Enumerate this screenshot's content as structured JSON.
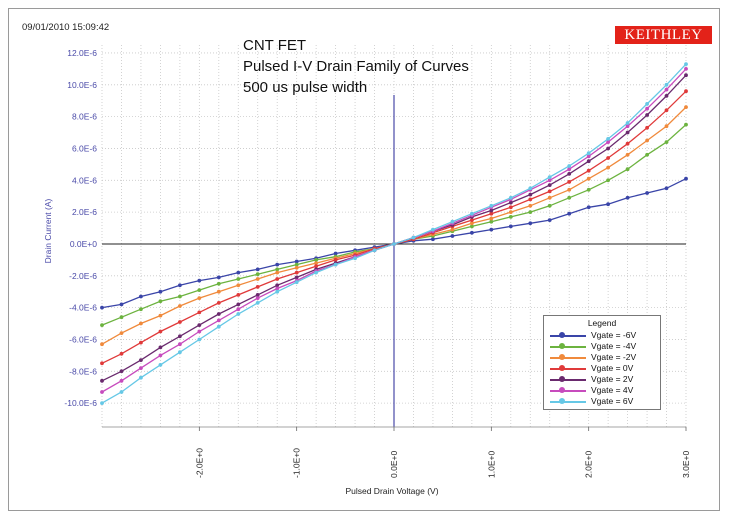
{
  "timestamp": "09/01/2010 15:09:42",
  "brand": "KEITHLEY",
  "title_lines": [
    "CNT FET",
    "Pulsed I-V Drain Family of Curves",
    "500 us pulse width"
  ],
  "chart_data": {
    "type": "line",
    "xlabel": "Pulsed Drain Voltage (V)",
    "ylabel": "Drain Current (A)",
    "xlim": [
      -3.0,
      3.0
    ],
    "ylim": [
      -11.5,
      12.5
    ],
    "x_ticks": [
      -2.0,
      -1.0,
      0.0,
      1.0,
      2.0,
      3.0
    ],
    "x_tick_labels": [
      "-2.0E+0",
      "-1.0E+0",
      "0.0E+0",
      "1.0E+0",
      "2.0E+0",
      "3.0E+0"
    ],
    "y_ticks": [
      12,
      10,
      8,
      6,
      4,
      2,
      0,
      -2,
      -4,
      -6,
      -8,
      -10
    ],
    "y_tick_labels": [
      "12.0E-6",
      "10.0E-6",
      "8.0E-6",
      "6.0E-6",
      "4.0E-6",
      "2.0E-6",
      "0.0E+0",
      "-2.0E-6",
      "-4.0E-6",
      "-6.0E-6",
      "-8.0E-6",
      "-10.0E-6"
    ],
    "y_unit_scale": "1E-6 A",
    "grid": true,
    "legend_title": "Legend",
    "legend_position": "bottom-right",
    "x": [
      -3.0,
      -2.8,
      -2.6,
      -2.4,
      -2.2,
      -2.0,
      -1.8,
      -1.6,
      -1.4,
      -1.2,
      -1.0,
      -0.8,
      -0.6,
      -0.4,
      -0.2,
      0.0,
      0.2,
      0.4,
      0.6,
      0.8,
      1.0,
      1.2,
      1.4,
      1.6,
      1.8,
      2.0,
      2.2,
      2.4,
      2.6,
      2.8,
      3.0
    ],
    "series": [
      {
        "name": "Vgate = -6V",
        "color": "#3a45a8",
        "values": [
          -4.0,
          -3.8,
          -3.3,
          -3.0,
          -2.6,
          -2.3,
          -2.1,
          -1.8,
          -1.6,
          -1.3,
          -1.1,
          -0.9,
          -0.6,
          -0.4,
          -0.2,
          0.0,
          0.2,
          0.3,
          0.5,
          0.7,
          0.9,
          1.1,
          1.3,
          1.5,
          1.9,
          2.3,
          2.5,
          2.9,
          3.2,
          3.5,
          4.1
        ]
      },
      {
        "name": "Vgate = -4V",
        "color": "#6cb33f",
        "values": [
          -5.1,
          -4.6,
          -4.1,
          -3.6,
          -3.3,
          -2.9,
          -2.5,
          -2.2,
          -1.9,
          -1.6,
          -1.3,
          -1.0,
          -0.8,
          -0.5,
          -0.3,
          0.0,
          0.3,
          0.5,
          0.8,
          1.1,
          1.4,
          1.7,
          2.0,
          2.4,
          2.9,
          3.4,
          4.0,
          4.7,
          5.6,
          6.4,
          7.5
        ]
      },
      {
        "name": "Vgate = -2V",
        "color": "#f08a3c",
        "values": [
          -6.3,
          -5.6,
          -5.0,
          -4.5,
          -3.9,
          -3.4,
          -3.0,
          -2.6,
          -2.2,
          -1.8,
          -1.5,
          -1.2,
          -0.9,
          -0.6,
          -0.3,
          0.0,
          0.3,
          0.6,
          0.9,
          1.3,
          1.6,
          2.0,
          2.4,
          2.9,
          3.4,
          4.1,
          4.8,
          5.6,
          6.5,
          7.4,
          8.6
        ]
      },
      {
        "name": "Vgate = 0V",
        "color": "#e03a3a",
        "values": [
          -7.5,
          -6.9,
          -6.2,
          -5.5,
          -4.9,
          -4.3,
          -3.7,
          -3.2,
          -2.7,
          -2.2,
          -1.8,
          -1.4,
          -1.0,
          -0.7,
          -0.3,
          0.0,
          0.3,
          0.7,
          1.1,
          1.5,
          1.9,
          2.3,
          2.8,
          3.3,
          3.9,
          4.6,
          5.4,
          6.3,
          7.3,
          8.4,
          9.6
        ]
      },
      {
        "name": "Vgate = 2V",
        "color": "#6a2a6e",
        "values": [
          -8.6,
          -8.0,
          -7.3,
          -6.5,
          -5.8,
          -5.1,
          -4.4,
          -3.8,
          -3.2,
          -2.6,
          -2.1,
          -1.6,
          -1.2,
          -0.8,
          -0.4,
          0.0,
          0.4,
          0.8,
          1.2,
          1.7,
          2.1,
          2.6,
          3.1,
          3.7,
          4.4,
          5.2,
          6.0,
          7.0,
          8.1,
          9.3,
          10.6
        ]
      },
      {
        "name": "Vgate = 4V",
        "color": "#c74bbd",
        "values": [
          -9.3,
          -8.6,
          -7.8,
          -7.0,
          -6.3,
          -5.5,
          -4.8,
          -4.1,
          -3.4,
          -2.8,
          -2.3,
          -1.7,
          -1.3,
          -0.8,
          -0.4,
          0.0,
          0.4,
          0.8,
          1.3,
          1.8,
          2.3,
          2.8,
          3.4,
          4.0,
          4.7,
          5.5,
          6.4,
          7.4,
          8.5,
          9.7,
          11.0
        ]
      },
      {
        "name": "Vgate = 6V",
        "color": "#66c8e6",
        "values": [
          -10.0,
          -9.3,
          -8.4,
          -7.6,
          -6.8,
          -6.0,
          -5.2,
          -4.4,
          -3.7,
          -3.0,
          -2.4,
          -1.8,
          -1.3,
          -0.9,
          -0.4,
          0.0,
          0.4,
          0.9,
          1.4,
          1.9,
          2.4,
          2.9,
          3.5,
          4.2,
          4.9,
          5.7,
          6.6,
          7.6,
          8.8,
          10.0,
          11.3
        ]
      }
    ]
  }
}
